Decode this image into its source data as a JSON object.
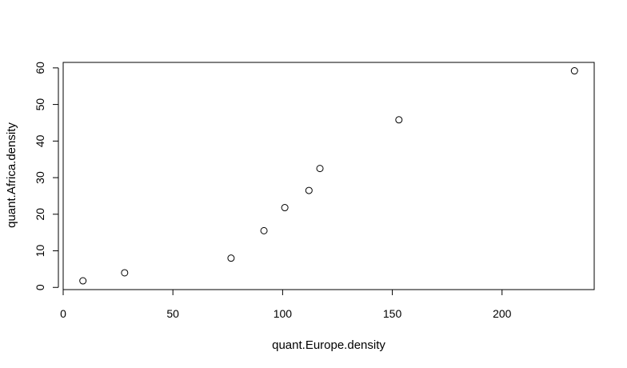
{
  "chart_data": {
    "type": "scatter",
    "xlabel": "quant.Europe.density",
    "ylabel": "quant.Africa.density",
    "x_ticks": [
      "0",
      "50",
      "100",
      "150",
      "200"
    ],
    "y_ticks": [
      "0",
      "10",
      "20",
      "30",
      "40",
      "50",
      "60"
    ],
    "xlim": [
      0,
      242
    ],
    "ylim": [
      -0.6,
      61.5
    ],
    "grid": false,
    "legend": "none",
    "marker": "open-circle",
    "colors": {
      "points": "#000000",
      "axes": "#000000",
      "background": "#ffffff"
    },
    "points": [
      {
        "x": 9,
        "y": 1.8
      },
      {
        "x": 28,
        "y": 4.0
      },
      {
        "x": 76.5,
        "y": 8.0
      },
      {
        "x": 91.5,
        "y": 15.5
      },
      {
        "x": 101,
        "y": 21.8
      },
      {
        "x": 112,
        "y": 26.5
      },
      {
        "x": 117,
        "y": 32.5
      },
      {
        "x": 153,
        "y": 45.8
      },
      {
        "x": 233,
        "y": 59.2
      }
    ]
  }
}
